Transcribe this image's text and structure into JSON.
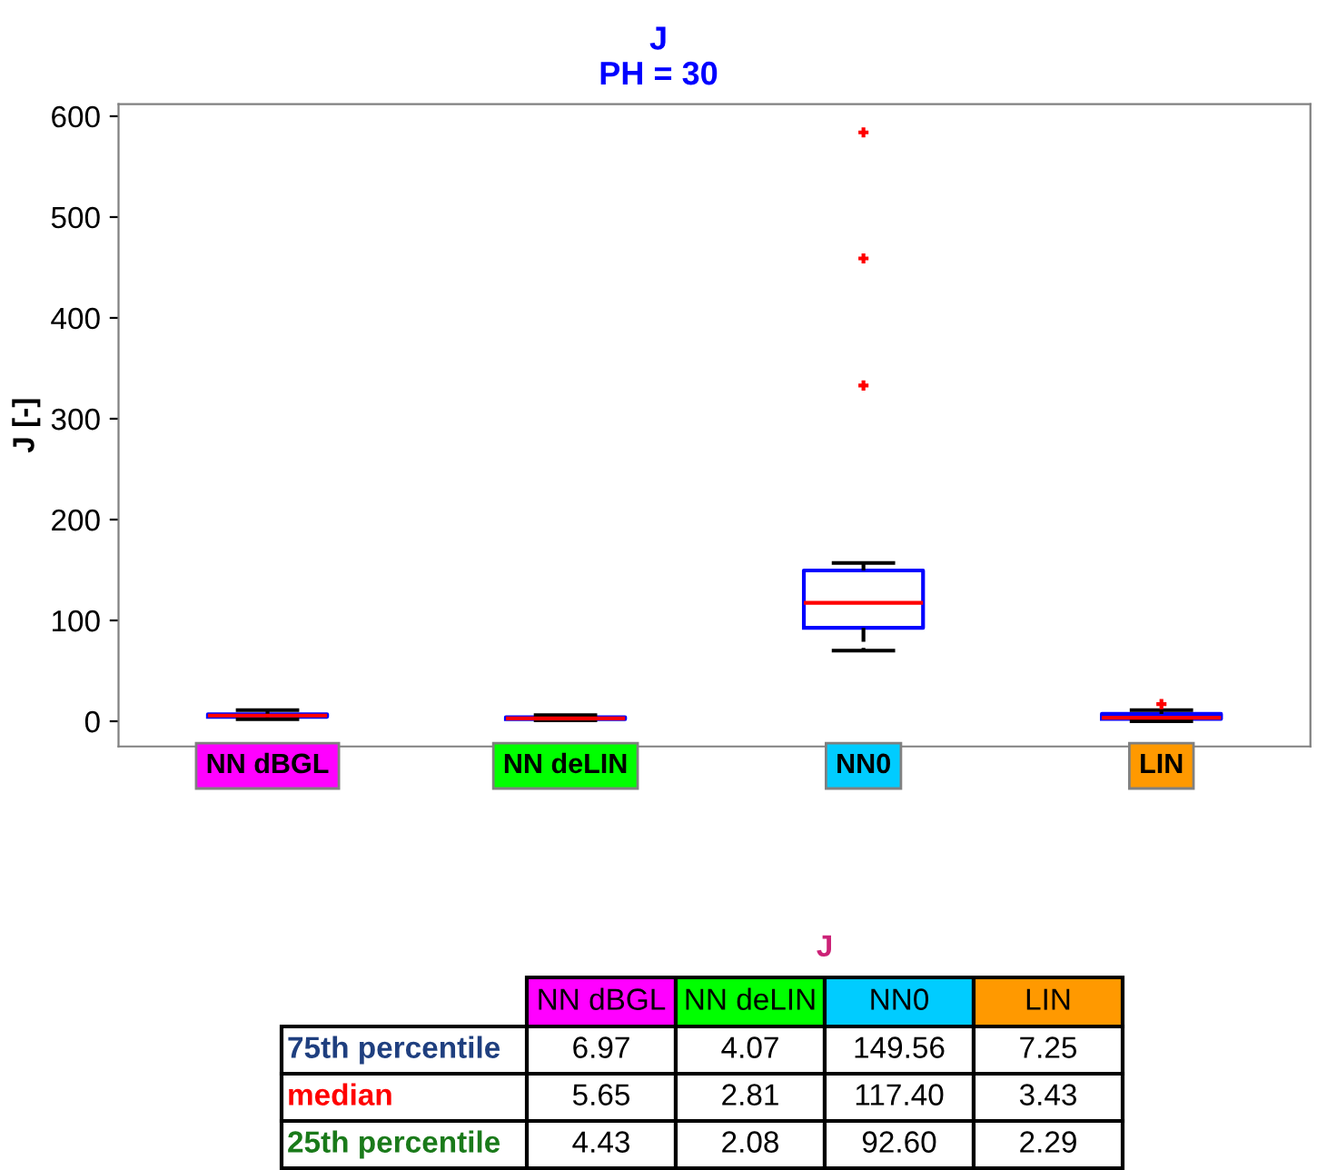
{
  "chart_data": {
    "type": "box",
    "title": "J",
    "subtitle": "PH = 30",
    "ylabel": "J [-]",
    "categories": [
      "NN dBGL",
      "NN deLIN",
      "NN0",
      "LIN"
    ],
    "boxes": [
      {
        "low": 2,
        "q1": 4.43,
        "median": 5.65,
        "q3": 6.97,
        "high": 11
      },
      {
        "low": 1,
        "q1": 2.08,
        "median": 2.81,
        "q3": 4.07,
        "high": 6
      },
      {
        "low": 70,
        "q1": 92.6,
        "median": 117.4,
        "q3": 149.56,
        "high": 157,
        "outliers": [
          333,
          459,
          584
        ]
      },
      {
        "low": 0,
        "q1": 2.29,
        "median": 3.43,
        "q3": 7.25,
        "high": 11,
        "outliers": [
          17
        ]
      }
    ],
    "value_labels": [
      [
        "6.97",
        "5.65",
        "4.43"
      ],
      [
        "4.07",
        "2.81",
        "2.08"
      ],
      [
        "149.56",
        "117.40",
        "92.60"
      ],
      [
        "7.25",
        "3.43",
        "2.29"
      ]
    ],
    "ylim": [
      -25,
      612
    ],
    "yticks": [
      0,
      100,
      200,
      300,
      400,
      500,
      600
    ],
    "grid": false,
    "data_labels": true,
    "annotations": [
      "J",
      "75th percentile",
      "median",
      "25th percentile"
    ]
  }
}
